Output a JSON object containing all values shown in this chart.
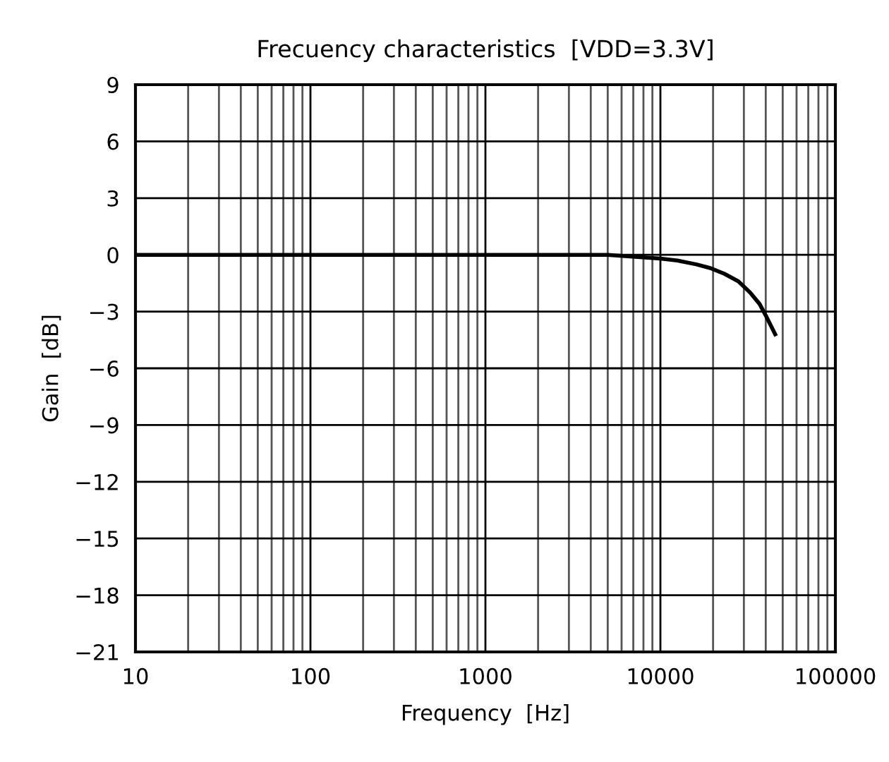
{
  "chart_data": {
    "type": "line",
    "title": "Frecuency characteristics  [VDD=3.3V]",
    "xlabel": "Frequency  [Hz]",
    "ylabel": "Gain  [dB]",
    "x": [
      10,
      100,
      1000,
      5000,
      10000,
      12500,
      16000,
      19300,
      23200,
      27900,
      32600,
      36900,
      40500,
      45300
    ],
    "series": [
      {
        "color": "#000000",
        "values": [
          0,
          0,
          0,
          0,
          -0.2,
          -0.3,
          -0.5,
          -0.7,
          -1.0,
          -1.4,
          -2.0,
          -2.6,
          -3.3,
          -4.2
        ]
      }
    ],
    "log": "x",
    "xlim": [
      10,
      100000
    ],
    "xticks": [
      10,
      100,
      1000,
      10000,
      100000
    ],
    "ylim": [
      -21,
      9
    ],
    "yticks": [
      -21,
      -18,
      -15,
      -12,
      -9,
      -6,
      -3,
      0,
      3,
      6,
      9
    ],
    "grid": true,
    "marker": "none",
    "line_style": "solid"
  }
}
